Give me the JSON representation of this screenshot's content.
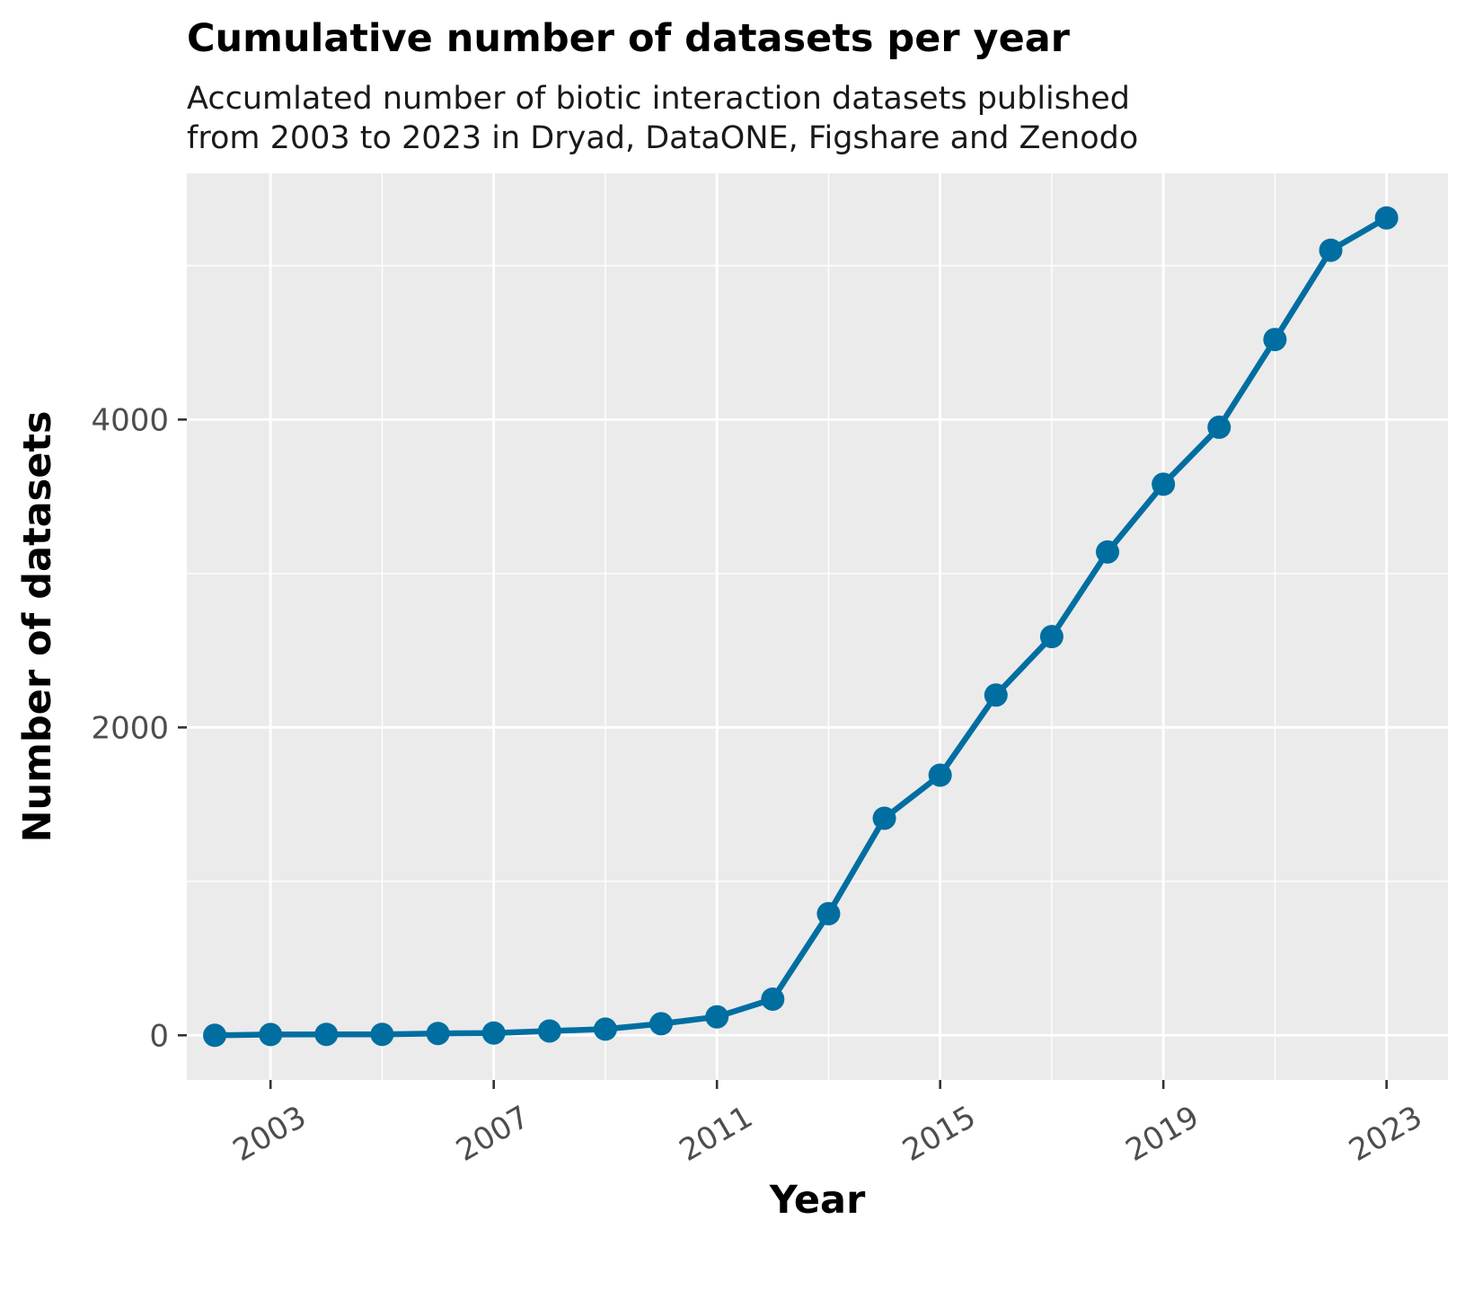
{
  "chart_data": {
    "type": "line",
    "title": "Cumulative number of datasets per year",
    "subtitle": "Accumlated number of biotic interaction datasets published\nfrom 2003 to 2023 in Dryad, DataONE, Figshare and Zenodo",
    "xlabel": "Year",
    "ylabel": "Number of datasets",
    "x": [
      2002,
      2003,
      2004,
      2005,
      2006,
      2007,
      2008,
      2009,
      2010,
      2011,
      2012,
      2013,
      2014,
      2015,
      2016,
      2017,
      2018,
      2019,
      2020,
      2021,
      2022,
      2023
    ],
    "series": [
      {
        "values": [
          0,
          5,
          6,
          6,
          12,
          15,
          28,
          40,
          75,
          120,
          235,
          790,
          1410,
          1690,
          2210,
          2590,
          3140,
          3580,
          3950,
          4520,
          5100,
          5310
        ]
      }
    ],
    "xticks": [
      "2003",
      "2007",
      "2011",
      "2015",
      "2019",
      "2023"
    ],
    "yticks": [
      "0",
      "2000",
      "4000"
    ],
    "xlim": [
      2001.5,
      2024.1
    ],
    "ylim": [
      -290,
      5600
    ],
    "grid": true,
    "colors": {
      "line": "#006ea1",
      "panel": "#ebebeb",
      "grid": "#ffffff"
    }
  }
}
